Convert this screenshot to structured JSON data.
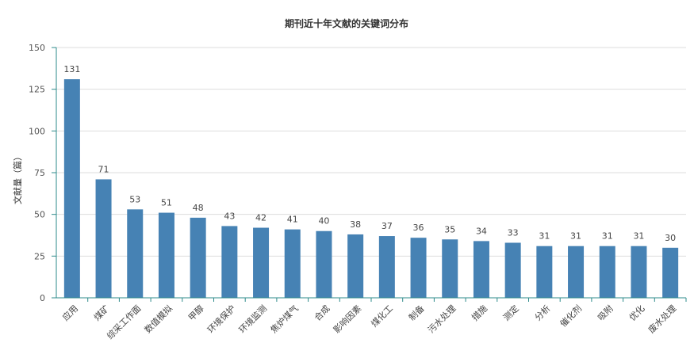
{
  "chart_data": {
    "type": "bar",
    "title": "期刊近十年文献的关键词分布",
    "xlabel": "",
    "ylabel": "文献量（篇）",
    "ylim": [
      0,
      150
    ],
    "yticks": [
      0,
      25,
      50,
      75,
      100,
      125,
      150
    ],
    "grid": true,
    "legend": "none",
    "colors": {
      "bar": "#4682b4",
      "axis": "#2e8b8b",
      "grid": "#dddddd"
    },
    "categories": [
      "应用",
      "煤矿",
      "综采工作面",
      "数值模拟",
      "甲醇",
      "环境保护",
      "环境监测",
      "焦炉煤气",
      "合成",
      "影响因素",
      "煤化工",
      "制备",
      "污水处理",
      "措施",
      "测定",
      "分析",
      "催化剂",
      "吸附",
      "优化",
      "废水处理"
    ],
    "values": [
      131,
      71,
      53,
      51,
      48,
      43,
      42,
      41,
      40,
      38,
      37,
      36,
      35,
      34,
      33,
      31,
      31,
      31,
      31,
      30
    ]
  }
}
